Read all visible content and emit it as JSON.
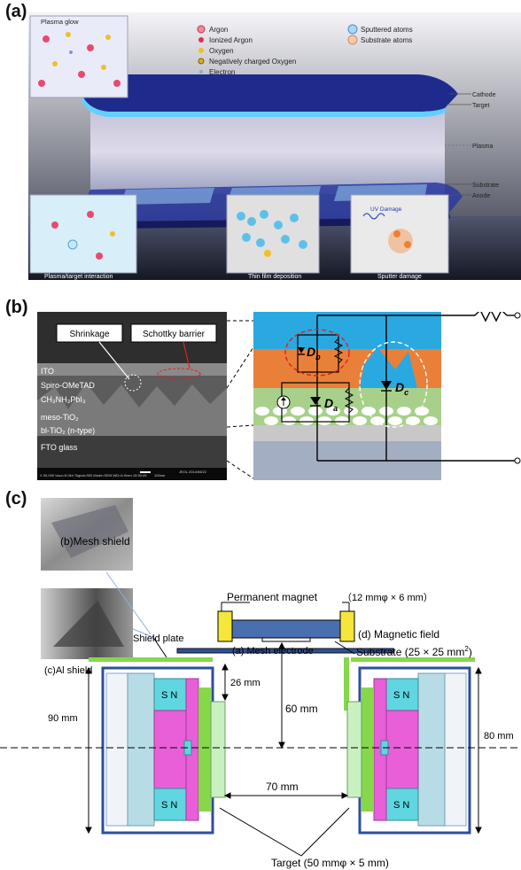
{
  "panel_a": {
    "label": "(a)",
    "inset_titles": {
      "plasma_glow": "Plasma glow",
      "plasma_target": "Plasma/target interaction",
      "thin_film": "Thin film deposition",
      "sputter_damage": "Sputter damage",
      "uv_damage": "UV Damage"
    },
    "legend_left": [
      "Argon",
      "Ionized Argon",
      "Oxygen",
      "Negatively charged Oxygen",
      "Electron"
    ],
    "legend_right": [
      "Sputtered atoms",
      "Substrate atoms"
    ],
    "right_labels": {
      "cathode": "Cathode",
      "target": "Target",
      "plasma": "Plasma",
      "substrate": "Substrate",
      "anode": "Anode"
    },
    "colors": {
      "cathode": "#1e2a8c",
      "target_glow": "#5fd0ff",
      "plasma": "#d9d8ea",
      "anode": "#2a3aa0"
    }
  },
  "panel_b": {
    "label": "(b)",
    "callouts": {
      "shrinkage": "Shrinkage",
      "schottky": "Schottky barrier"
    },
    "layers": [
      "ITO",
      "Spiro-OMeTAD",
      "CH₃NH₃PbI₃",
      "meso-TiO₂",
      "bl-TiO₂ (n-type)",
      "FTO glass"
    ],
    "sem_footer": "X 50,000  Vacc=5.0kV  Signal=SEI  Mode=SEM  WD=6.9mm  15:30:49",
    "sem_scale": "100nm",
    "sem_date": "JEOL 2014/06/22",
    "diodes": {
      "db": "D",
      "db_sub": "b",
      "da": "D",
      "da_sub": "a",
      "dc": "D",
      "dc_sub": "c"
    },
    "colors": {
      "top": "#2aa8e0",
      "orange": "#e8803a",
      "green": "#a8d08a",
      "gray": "#c8c8c8",
      "bottom": "#a3aec2"
    }
  },
  "panel_c": {
    "label": "(c)",
    "photo_labels": {
      "mesh_shield": "(b)Mesh shield",
      "al_shield": "(c)Al shield"
    },
    "labels": {
      "shield_plate": "Shield plate",
      "permanent_magnet": "Permanent magnet",
      "magnet_size": "（12 mmφ × 6 mm）",
      "magnetic_field": "(d) Magnetic field",
      "mesh_electrode": "(a) Mesh electrode",
      "substrate": "Substrate (25 × 25  mm",
      "substrate_sup": "2",
      "substrate_end": ")",
      "dim_26": "26 mm",
      "dim_60": "60 mm",
      "dim_90": "90 mm",
      "dim_80": "80 mm",
      "dim_70": "70 mm",
      "target": "Target (50  mmφ × 5 mm)",
      "sn_top": "S  N",
      "sn_bottom": "S  N"
    },
    "colors": {
      "magnet": "#f5e63a",
      "electrode": "#4a6fb0",
      "shield": "#86d84a",
      "pink": "#e85fd8",
      "cyan": "#5fd6e0",
      "frame": "#2d4f9a"
    }
  }
}
